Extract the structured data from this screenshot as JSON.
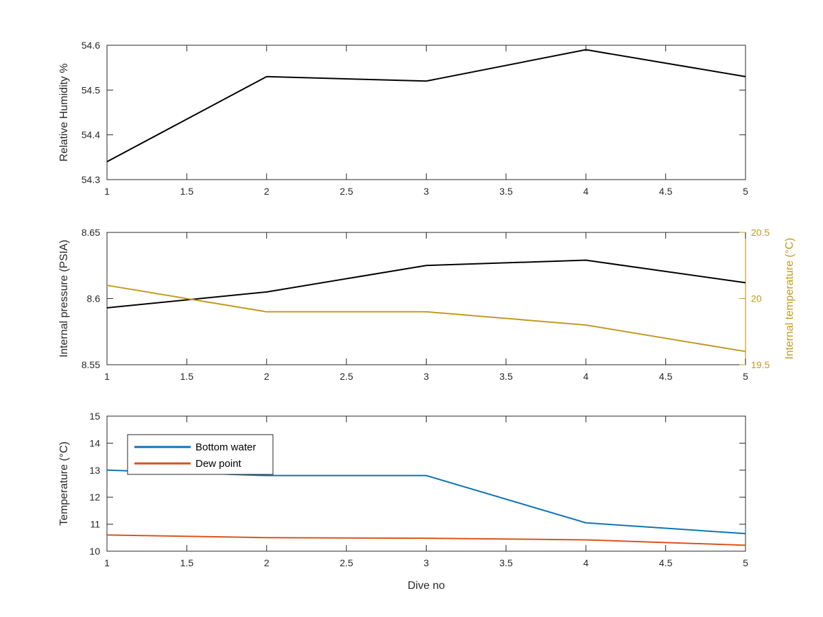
{
  "chart_data": [
    {
      "type": "line",
      "ylabel": "Relative Humidity %",
      "xlim": [
        1,
        5
      ],
      "ylim": [
        54.3,
        54.6
      ],
      "xticks": [
        "1",
        "1.5",
        "2",
        "2.5",
        "3",
        "3.5",
        "4",
        "4.5",
        "5"
      ],
      "yticks": [
        "54.3",
        "54.4",
        "54.5",
        "54.6"
      ],
      "series": [
        {
          "x": [
            1,
            2,
            3,
            4,
            5
          ],
          "values": [
            54.34,
            54.53,
            54.52,
            54.59,
            54.53
          ],
          "color": "#000000"
        }
      ]
    },
    {
      "type": "line",
      "ylabel": "Internal pressure (PSIA)",
      "ylabel_right": "Internal temperature (°C)",
      "xlim": [
        1,
        5
      ],
      "ylim": [
        8.55,
        8.65
      ],
      "ylim_right": [
        19.5,
        20.5
      ],
      "xticks": [
        "1",
        "1.5",
        "2",
        "2.5",
        "3",
        "3.5",
        "4",
        "4.5",
        "5"
      ],
      "yticks": [
        "8.55",
        "8.6",
        "8.65"
      ],
      "yticks_right": [
        "19.5",
        "20",
        "20.5"
      ],
      "right_axis_color": "#c19a1c",
      "series": [
        {
          "axis": "left",
          "x": [
            1,
            2,
            3,
            4,
            5
          ],
          "values": [
            8.593,
            8.605,
            8.625,
            8.629,
            8.612
          ],
          "color": "#000000"
        },
        {
          "axis": "right",
          "x": [
            1,
            2,
            3,
            4,
            5
          ],
          "values": [
            20.1,
            19.9,
            19.9,
            19.8,
            19.6
          ],
          "color": "#c19a1c"
        }
      ]
    },
    {
      "type": "line",
      "ylabel": "Temperature (°C)",
      "xlabel": "Dive no",
      "xlim": [
        1,
        5
      ],
      "ylim": [
        10,
        15
      ],
      "xticks": [
        "1",
        "1.5",
        "2",
        "2.5",
        "3",
        "3.5",
        "4",
        "4.5",
        "5"
      ],
      "yticks": [
        "10",
        "11",
        "12",
        "13",
        "14",
        "15"
      ],
      "legend_position": "top-left",
      "series": [
        {
          "name": "Bottom water",
          "x": [
            1,
            2,
            3,
            4,
            5
          ],
          "values": [
            13.0,
            12.8,
            12.8,
            11.05,
            10.65
          ],
          "color": "#0d72b3"
        },
        {
          "name": "Dew point",
          "x": [
            1,
            2,
            3,
            4,
            5
          ],
          "values": [
            10.6,
            10.5,
            10.48,
            10.42,
            10.22
          ],
          "color": "#d95319"
        }
      ]
    }
  ]
}
